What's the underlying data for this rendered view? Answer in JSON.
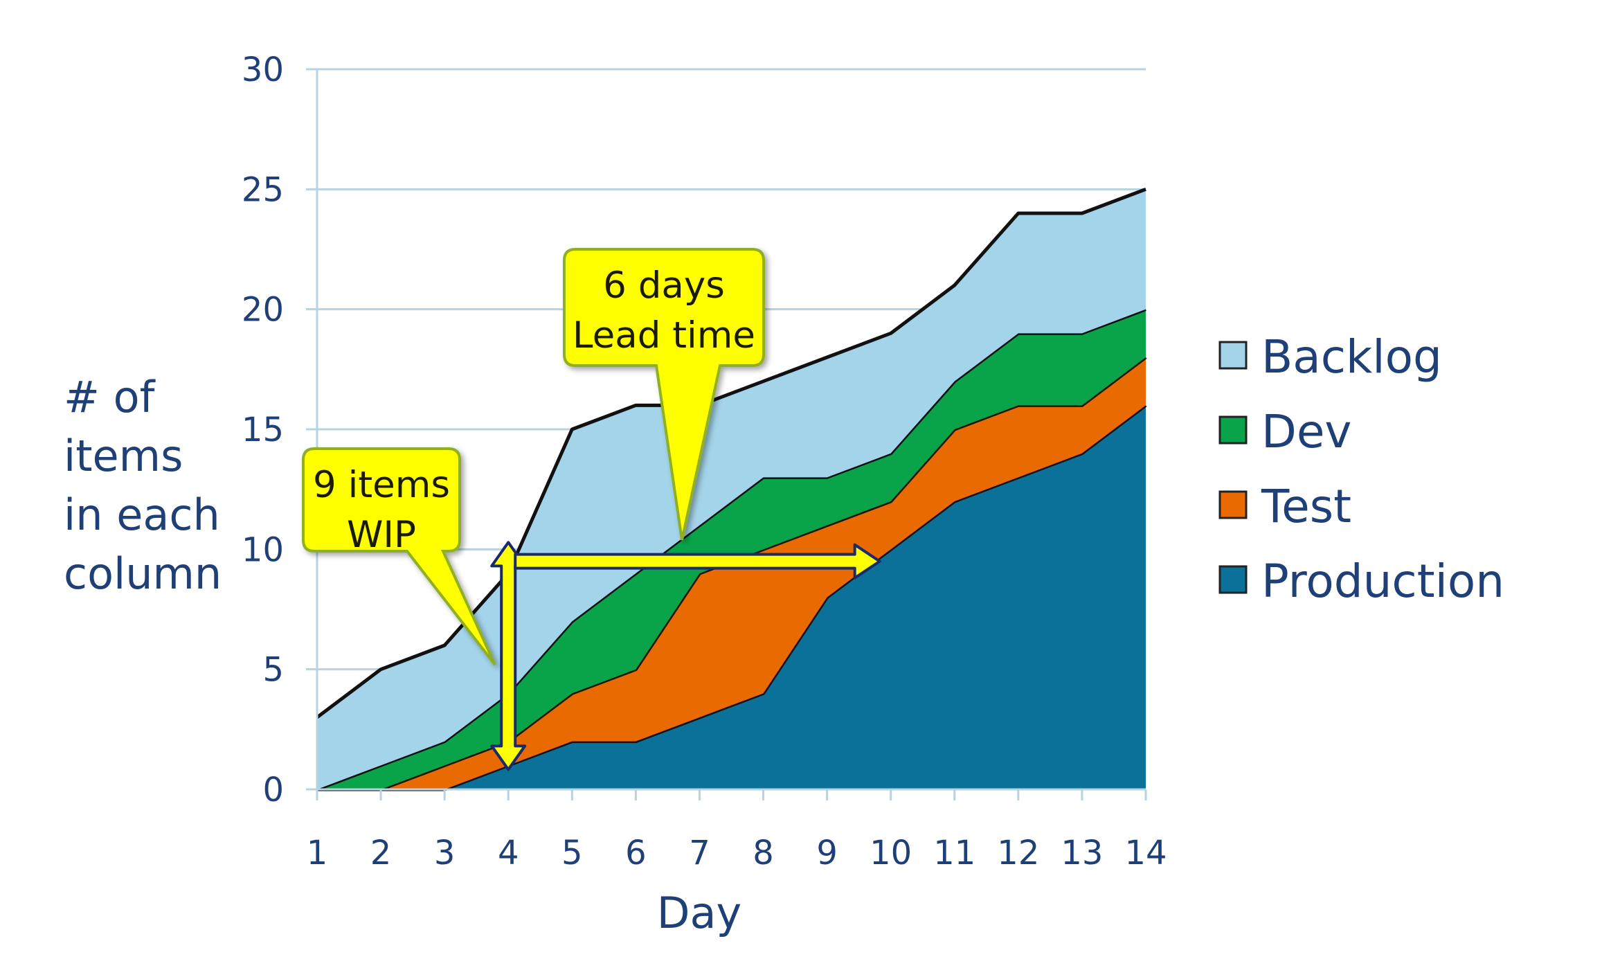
{
  "chart_data": {
    "type": "area",
    "stacked": true,
    "title": "",
    "xlabel": "Day",
    "ylabel": "# of items in each column",
    "ylabel_lines": [
      "# of",
      "items",
      "in each",
      "column"
    ],
    "x": [
      1,
      2,
      3,
      4,
      5,
      6,
      7,
      8,
      9,
      10,
      11,
      12,
      13,
      14
    ],
    "ylim": [
      0,
      30
    ],
    "yticks": [
      0,
      5,
      10,
      15,
      20,
      25,
      30
    ],
    "grid": true,
    "legend_position": "right",
    "series": [
      {
        "name": "Production",
        "color": "#0b7199",
        "values": [
          0,
          0,
          0,
          1,
          2,
          2,
          3,
          4,
          8,
          10,
          12,
          13,
          14,
          16
        ]
      },
      {
        "name": "Test",
        "color": "#e96a00",
        "values": [
          0,
          0,
          1,
          1,
          2,
          3,
          6,
          6,
          3,
          2,
          3,
          3,
          2,
          2
        ]
      },
      {
        "name": "Dev",
        "color": "#09a44a",
        "values": [
          0,
          1,
          1,
          2,
          3,
          4,
          2,
          3,
          2,
          2,
          2,
          3,
          3,
          2
        ]
      },
      {
        "name": "Backlog",
        "color": "#a4d4ea",
        "values": [
          3,
          4,
          4,
          5,
          8,
          7,
          5,
          4,
          5,
          5,
          4,
          5,
          5,
          5
        ]
      }
    ],
    "legend_order": [
      "Backlog",
      "Dev",
      "Test",
      "Production"
    ],
    "annotations": [
      {
        "name": "wip",
        "lines": [
          "9 items",
          "WIP"
        ],
        "arrow": "vertical",
        "at_day": 4,
        "from_value": 1,
        "to_value": 10
      },
      {
        "name": "lead-time",
        "lines": [
          "6 days",
          "Lead time"
        ],
        "arrow": "horizontal",
        "at_value": 9.5,
        "from_day": 4,
        "to_day": 10
      }
    ],
    "colors": {
      "grid": "#b7d3e2",
      "axis": "#b7d3e2",
      "callout_fill": "#ffff00",
      "callout_stroke": "#8fb020",
      "arrow_stroke": "#1a2a6a"
    }
  }
}
